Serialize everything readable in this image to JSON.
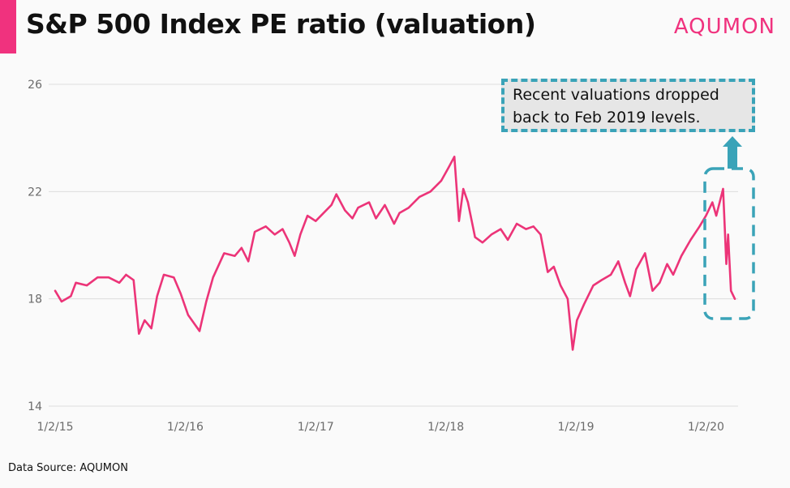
{
  "title": "S&P 500 Index PE ratio (valuation)",
  "brand": "AQUMON",
  "source": "Data Source: AQUMON",
  "annotation": {
    "line1": "Recent valuations dropped",
    "line2": "back to Feb 2019 levels."
  },
  "colors": {
    "accent": "#f0327e",
    "series": "#ec3478",
    "annotation": "#3aa3b8",
    "grid": "#dddddd"
  },
  "chart_data": {
    "type": "line",
    "title": "S&P 500 Index PE ratio (valuation)",
    "xlabel": "",
    "ylabel": "",
    "ylim": [
      14,
      26
    ],
    "y_ticks": [
      14,
      18,
      22,
      26
    ],
    "x_ticks": [
      "1/2/15",
      "1/2/16",
      "1/2/17",
      "1/2/18",
      "1/2/19",
      "1/2/20"
    ],
    "xlim": [
      "2015-01-02",
      "2020-03-23"
    ],
    "grid": "horizontal",
    "series": [
      {
        "values": [
          [
            "2015-01-02",
            18.3
          ],
          [
            "2015-01-20",
            17.9
          ],
          [
            "2015-02-15",
            18.1
          ],
          [
            "2015-03-01",
            18.6
          ],
          [
            "2015-04-01",
            18.5
          ],
          [
            "2015-05-01",
            18.8
          ],
          [
            "2015-06-01",
            18.8
          ],
          [
            "2015-07-01",
            18.6
          ],
          [
            "2015-07-20",
            18.9
          ],
          [
            "2015-08-10",
            18.7
          ],
          [
            "2015-08-25",
            16.7
          ],
          [
            "2015-09-10",
            17.2
          ],
          [
            "2015-09-29",
            16.9
          ],
          [
            "2015-10-15",
            18.1
          ],
          [
            "2015-11-03",
            18.9
          ],
          [
            "2015-12-01",
            18.8
          ],
          [
            "2015-12-20",
            18.2
          ],
          [
            "2016-01-10",
            17.4
          ],
          [
            "2016-02-11",
            16.8
          ],
          [
            "2016-03-01",
            17.9
          ],
          [
            "2016-03-20",
            18.8
          ],
          [
            "2016-04-20",
            19.7
          ],
          [
            "2016-05-20",
            19.6
          ],
          [
            "2016-06-08",
            19.9
          ],
          [
            "2016-06-27",
            19.4
          ],
          [
            "2016-07-15",
            20.5
          ],
          [
            "2016-08-15",
            20.7
          ],
          [
            "2016-09-09",
            20.4
          ],
          [
            "2016-10-01",
            20.6
          ],
          [
            "2016-10-20",
            20.1
          ],
          [
            "2016-11-04",
            19.6
          ],
          [
            "2016-11-20",
            20.4
          ],
          [
            "2016-12-10",
            21.1
          ],
          [
            "2017-01-02",
            20.9
          ],
          [
            "2017-02-15",
            21.5
          ],
          [
            "2017-03-01",
            21.9
          ],
          [
            "2017-03-25",
            21.3
          ],
          [
            "2017-04-15",
            21.0
          ],
          [
            "2017-05-01",
            21.4
          ],
          [
            "2017-06-01",
            21.6
          ],
          [
            "2017-06-20",
            21.0
          ],
          [
            "2017-07-15",
            21.5
          ],
          [
            "2017-08-10",
            20.8
          ],
          [
            "2017-08-25",
            21.2
          ],
          [
            "2017-09-20",
            21.4
          ],
          [
            "2017-10-20",
            21.8
          ],
          [
            "2017-11-20",
            22.0
          ],
          [
            "2017-12-20",
            22.4
          ],
          [
            "2018-01-10",
            22.9
          ],
          [
            "2018-01-26",
            23.3
          ],
          [
            "2018-02-08",
            20.9
          ],
          [
            "2018-02-20",
            22.1
          ],
          [
            "2018-03-05",
            21.6
          ],
          [
            "2018-03-25",
            20.3
          ],
          [
            "2018-04-15",
            20.1
          ],
          [
            "2018-05-10",
            20.4
          ],
          [
            "2018-06-05",
            20.6
          ],
          [
            "2018-06-25",
            20.2
          ],
          [
            "2018-07-20",
            20.8
          ],
          [
            "2018-08-15",
            20.6
          ],
          [
            "2018-09-05",
            20.7
          ],
          [
            "2018-09-25",
            20.4
          ],
          [
            "2018-10-15",
            19.0
          ],
          [
            "2018-11-01",
            19.2
          ],
          [
            "2018-11-20",
            18.5
          ],
          [
            "2018-12-10",
            18.0
          ],
          [
            "2018-12-24",
            16.1
          ],
          [
            "2019-01-05",
            17.2
          ],
          [
            "2019-01-25",
            17.8
          ],
          [
            "2019-02-20",
            18.5
          ],
          [
            "2019-03-15",
            18.7
          ],
          [
            "2019-04-10",
            18.9
          ],
          [
            "2019-05-01",
            19.4
          ],
          [
            "2019-05-20",
            18.6
          ],
          [
            "2019-06-03",
            18.1
          ],
          [
            "2019-06-20",
            19.1
          ],
          [
            "2019-07-15",
            19.7
          ],
          [
            "2019-08-05",
            18.3
          ],
          [
            "2019-08-25",
            18.6
          ],
          [
            "2019-09-15",
            19.3
          ],
          [
            "2019-10-02",
            18.9
          ],
          [
            "2019-10-25",
            19.6
          ],
          [
            "2019-11-20",
            20.2
          ],
          [
            "2019-12-15",
            20.7
          ],
          [
            "2020-01-02",
            21.1
          ],
          [
            "2020-01-20",
            21.6
          ],
          [
            "2020-01-31",
            21.1
          ],
          [
            "2020-02-19",
            22.1
          ],
          [
            "2020-02-28",
            19.3
          ],
          [
            "2020-03-04",
            20.4
          ],
          [
            "2020-03-12",
            18.3
          ],
          [
            "2020-03-23",
            18.0
          ]
        ]
      }
    ]
  }
}
